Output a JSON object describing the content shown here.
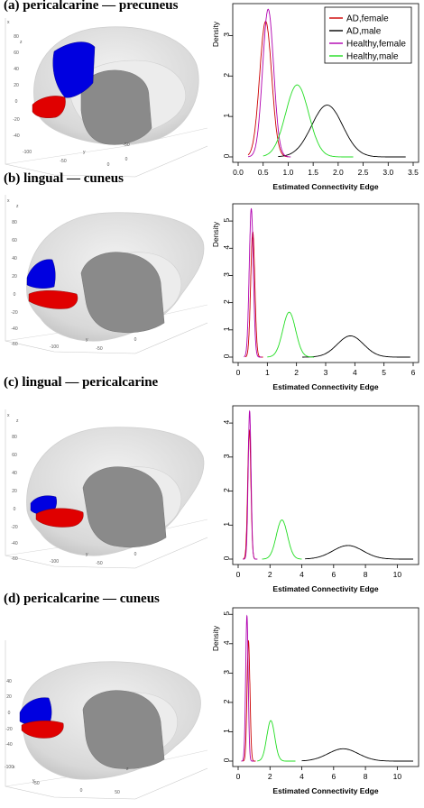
{
  "panels": [
    {
      "title": "(a) pericalcarine — precuneus",
      "brain": {
        "regions": [
          {
            "name": "pericalcarine",
            "color": "#e00000"
          },
          {
            "name": "precuneus",
            "color": "#0000e0"
          }
        ],
        "axis_letters": [
          "z",
          "x",
          "y"
        ],
        "tick_labels": [
          "80",
          "60",
          "40",
          "20",
          "0",
          "-20",
          "-40",
          "-100",
          "-50",
          "0",
          "-50",
          "0"
        ]
      },
      "chart_data": {
        "type": "line",
        "xlabel": "Estimated Connectivity Edge",
        "ylabel": "Density",
        "xlim": [
          0.0,
          3.5
        ],
        "ylim": [
          0,
          3.7
        ],
        "xticks": [
          "0.0",
          "0.5",
          "1.0",
          "1.5",
          "2.0",
          "2.5",
          "3.0",
          "3.5"
        ],
        "yticks": [
          "0",
          "1",
          "2",
          "3"
        ],
        "legend": "top-right",
        "series": [
          {
            "name": "AD,female",
            "color": "#cc0000",
            "mu": 0.55,
            "sd": 0.12,
            "peak": 3.35,
            "range": [
              0.2,
              1.0
            ]
          },
          {
            "name": "AD,male",
            "color": "#000000",
            "mu": 1.78,
            "sd": 0.31,
            "peak": 1.28,
            "range": [
              0.8,
              3.35
            ]
          },
          {
            "name": "Healthy,female",
            "color": "#b000b0",
            "mu": 0.6,
            "sd": 0.11,
            "peak": 3.65,
            "range": [
              0.2,
              1.05
            ]
          },
          {
            "name": "Healthy,male",
            "color": "#22dd22",
            "mu": 1.18,
            "sd": 0.23,
            "peak": 1.78,
            "range": [
              0.5,
              2.3
            ]
          }
        ]
      }
    },
    {
      "title": "(b) lingual — cuneus",
      "brain": {
        "regions": [
          {
            "name": "lingual",
            "color": "#e00000"
          },
          {
            "name": "cuneus",
            "color": "#0000e0"
          }
        ],
        "axis_letters": [
          "x",
          "z",
          "y"
        ],
        "tick_labels": [
          "80",
          "60",
          "40",
          "20",
          "0",
          "-20",
          "-40",
          "-60",
          "-100",
          "-50",
          "0"
        ]
      },
      "chart_data": {
        "type": "line",
        "xlabel": "Estimated Connectivity Edge",
        "ylabel": "Density",
        "xlim": [
          0,
          6
        ],
        "ylim": [
          0,
          5.5
        ],
        "xticks": [
          "0",
          "1",
          "2",
          "3",
          "4",
          "5",
          "6"
        ],
        "yticks": [
          "0",
          "1",
          "2",
          "3",
          "4",
          "5"
        ],
        "series": [
          {
            "name": "AD,female",
            "color": "#cc0000",
            "mu": 0.5,
            "sd": 0.07,
            "peak": 4.6,
            "range": [
              0.25,
              0.85
            ]
          },
          {
            "name": "AD,male",
            "color": "#000000",
            "mu": 3.85,
            "sd": 0.45,
            "peak": 0.78,
            "range": [
              2.2,
              5.9
            ]
          },
          {
            "name": "Healthy,female",
            "color": "#b000b0",
            "mu": 0.45,
            "sd": 0.07,
            "peak": 5.45,
            "range": [
              0.2,
              0.8
            ]
          },
          {
            "name": "Healthy,male",
            "color": "#22dd22",
            "mu": 1.75,
            "sd": 0.22,
            "peak": 1.65,
            "range": [
              1.0,
              2.6
            ]
          }
        ]
      }
    },
    {
      "title": "(c) lingual — pericalcarine",
      "brain": {
        "regions": [
          {
            "name": "lingual",
            "color": "#e00000"
          },
          {
            "name": "pericalcarine",
            "color": "#0000e0"
          }
        ],
        "axis_letters": [
          "x",
          "z",
          "y"
        ],
        "tick_labels": [
          "80",
          "60",
          "40",
          "20",
          "0",
          "-20",
          "-40",
          "-60",
          "-100",
          "-50",
          "0"
        ]
      },
      "chart_data": {
        "type": "line",
        "xlabel": "Estimated Connectivity Edge",
        "ylabel": "",
        "xlim": [
          0,
          11
        ],
        "ylim": [
          0,
          4.4
        ],
        "xticks": [
          "0",
          "2",
          "4",
          "6",
          "8",
          "10"
        ],
        "yticks": [
          "0",
          "1",
          "2",
          "3",
          "4"
        ],
        "series": [
          {
            "name": "AD,female",
            "color": "#cc0000",
            "mu": 0.7,
            "sd": 0.1,
            "peak": 3.8,
            "range": [
              0.3,
              1.2
            ]
          },
          {
            "name": "AD,male",
            "color": "#000000",
            "mu": 6.9,
            "sd": 0.95,
            "peak": 0.4,
            "range": [
              4.2,
              11
            ]
          },
          {
            "name": "Healthy,female",
            "color": "#b000b0",
            "mu": 0.72,
            "sd": 0.09,
            "peak": 4.35,
            "range": [
              0.3,
              1.2
            ]
          },
          {
            "name": "Healthy,male",
            "color": "#22dd22",
            "mu": 2.75,
            "sd": 0.35,
            "peak": 1.15,
            "range": [
              1.5,
              4.0
            ]
          }
        ]
      }
    },
    {
      "title": "(d) pericalcarine — cuneus",
      "brain": {
        "regions": [
          {
            "name": "pericalcarine",
            "color": "#e00000"
          },
          {
            "name": "cuneus",
            "color": "#0000e0"
          }
        ],
        "axis_letters": [
          "x",
          "y",
          "z"
        ],
        "tick_labels": [
          "40",
          "20",
          "0",
          "-20",
          "-40",
          "-100",
          "-50",
          "0",
          "50"
        ]
      },
      "chart_data": {
        "type": "line",
        "xlabel": "Estimated Connectivity Edge",
        "ylabel": "Density",
        "xlim": [
          0,
          11
        ],
        "ylim": [
          0,
          5.1
        ],
        "xticks": [
          "0",
          "2",
          "4",
          "6",
          "8",
          "10"
        ],
        "yticks": [
          "0",
          "1",
          "2",
          "3",
          "4",
          "5"
        ],
        "series": [
          {
            "name": "AD,female",
            "color": "#cc0000",
            "mu": 0.65,
            "sd": 0.09,
            "peak": 4.1,
            "range": [
              0.3,
              1.1
            ]
          },
          {
            "name": "AD,male",
            "color": "#000000",
            "mu": 6.6,
            "sd": 0.95,
            "peak": 0.42,
            "range": [
              4.0,
              11
            ]
          },
          {
            "name": "Healthy,female",
            "color": "#b000b0",
            "mu": 0.55,
            "sd": 0.08,
            "peak": 4.95,
            "range": [
              0.2,
              1.0
            ]
          },
          {
            "name": "Healthy,male",
            "color": "#22dd22",
            "mu": 2.05,
            "sd": 0.25,
            "peak": 1.38,
            "range": [
              1.2,
              3.6
            ]
          }
        ]
      }
    }
  ]
}
